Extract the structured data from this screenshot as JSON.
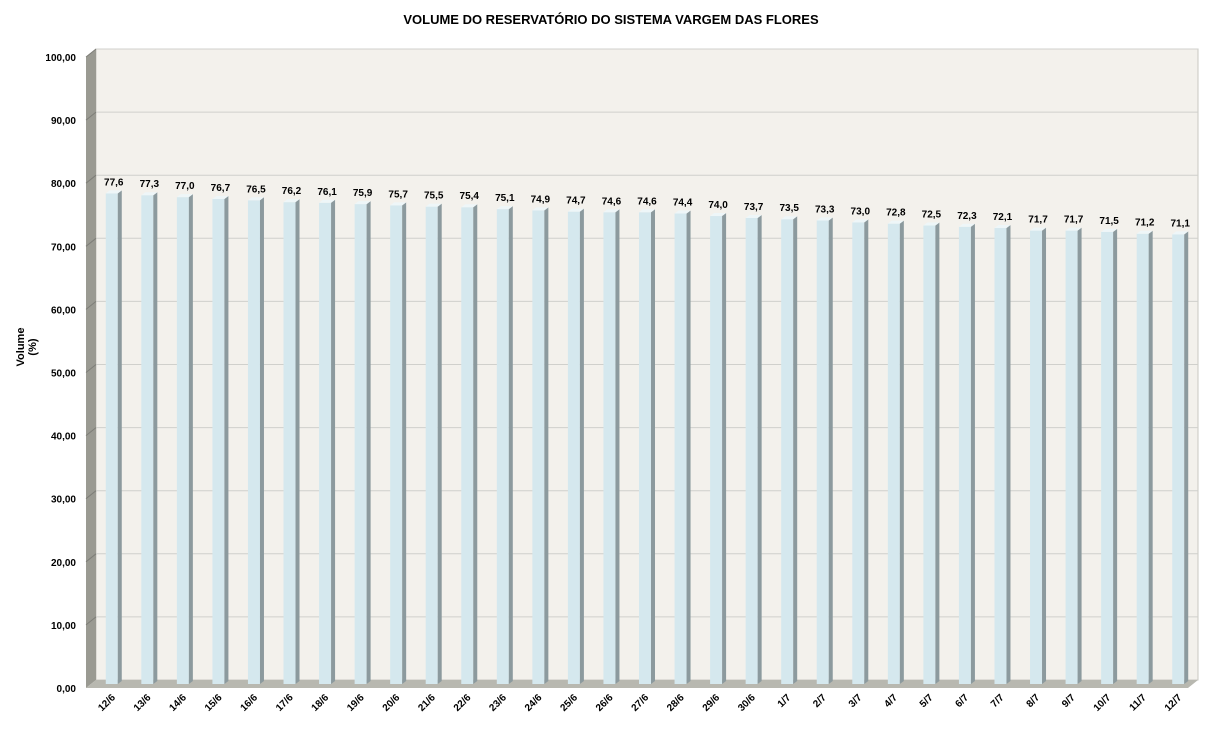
{
  "chart_data": {
    "type": "bar",
    "title": "VOLUME DO RESERVATÓRIO DO SISTEMA VARGEM DAS FLORES",
    "xlabel": "",
    "ylabel": "Volume (%)",
    "ylim": [
      0,
      100
    ],
    "y_ticks": [
      "0,00",
      "10,00",
      "20,00",
      "30,00",
      "40,00",
      "50,00",
      "60,00",
      "70,00",
      "80,00",
      "90,00",
      "100,00"
    ],
    "grid": true,
    "categories": [
      "12/6",
      "13/6",
      "14/6",
      "15/6",
      "16/6",
      "17/6",
      "18/6",
      "19/6",
      "20/6",
      "21/6",
      "22/6",
      "23/6",
      "24/6",
      "25/6",
      "26/6",
      "27/6",
      "28/6",
      "29/6",
      "30/6",
      "1/7",
      "2/7",
      "3/7",
      "4/7",
      "5/7",
      "6/7",
      "7/7",
      "8/7",
      "9/7",
      "10/7",
      "11/7",
      "12/7"
    ],
    "values": [
      77.6,
      77.3,
      77.0,
      76.7,
      76.5,
      76.2,
      76.1,
      75.9,
      75.7,
      75.5,
      75.4,
      75.1,
      74.9,
      74.7,
      74.6,
      74.6,
      74.4,
      74.0,
      73.7,
      73.5,
      73.3,
      73.0,
      72.8,
      72.5,
      72.3,
      72.1,
      71.7,
      71.7,
      71.5,
      71.2,
      71.1
    ],
    "data_labels": [
      "77,6",
      "77,3",
      "77,0",
      "76,7",
      "76,5",
      "76,2",
      "76,1",
      "75,9",
      "75,7",
      "75,5",
      "75,4",
      "75,1",
      "74,9",
      "74,7",
      "74,6",
      "74,6",
      "74,4",
      "74,0",
      "73,7",
      "73,5",
      "73,3",
      "73,0",
      "72,8",
      "72,5",
      "72,3",
      "72,1",
      "71,7",
      "71,7",
      "71,5",
      "71,2",
      "71,1"
    ],
    "colors": {
      "bar_front": "#d5e8ee",
      "bar_side": "#8c9a9e",
      "bar_top": "#eef6f8",
      "plot_bg": "#f3f1ec",
      "wall_side": "#9a9a92",
      "floor": "#b8b8b0",
      "gridline": "#d0d0cc"
    }
  }
}
